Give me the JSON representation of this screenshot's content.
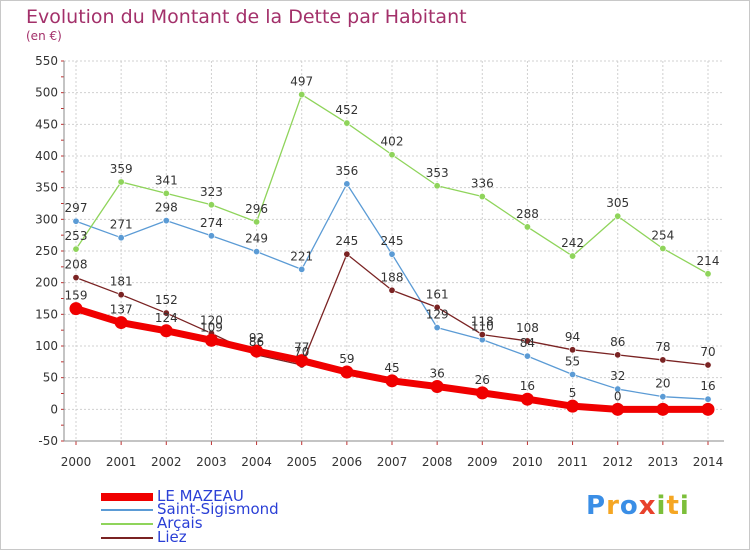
{
  "title": "Evolution du Montant de la Dette par Habitant",
  "subtitle": "(en €)",
  "logo": {
    "letters": [
      "P",
      "r",
      "o",
      "x",
      "i",
      "t",
      "i"
    ],
    "colors": [
      "#3a8ee6",
      "#f5a623",
      "#3a8ee6",
      "#e8412c",
      "#7cbf3a",
      "#f5a623",
      "#7cbf3a"
    ]
  },
  "chart_data": {
    "type": "line",
    "title": "Evolution du Montant de la Dette par Habitant",
    "ylabel": "(en €)",
    "xlabel": "",
    "x": [
      "2000",
      "2001",
      "2002",
      "2003",
      "2004",
      "2005",
      "2006",
      "2007",
      "2008",
      "2009",
      "2010",
      "2011",
      "2012",
      "2013",
      "2014"
    ],
    "ylim": [
      -50,
      550
    ],
    "yticks": [
      -50,
      0,
      50,
      100,
      150,
      200,
      250,
      300,
      350,
      400,
      450,
      500,
      550
    ],
    "grid": true,
    "legend_position": "bottom-left",
    "series": [
      {
        "name": "LE MAZEAU",
        "color": "#f00000",
        "bold": true,
        "values": [
          159,
          137,
          124,
          109,
          92,
          77,
          59,
          45,
          36,
          26,
          16,
          5,
          0,
          0,
          0
        ],
        "labels": [
          "159",
          "137",
          "124",
          "109",
          "92",
          "77",
          "59",
          "45",
          "36",
          "26",
          "16",
          "5",
          "0",
          "",
          ""
        ]
      },
      {
        "name": "Saint-Sigismond",
        "color": "#5b9bd5",
        "bold": false,
        "values": [
          297,
          271,
          298,
          274,
          249,
          221,
          356,
          245,
          129,
          110,
          84,
          55,
          32,
          20,
          16
        ],
        "labels": [
          "297",
          "271",
          "298",
          "274",
          "249",
          "221",
          "356",
          "245",
          "129",
          "110",
          "84",
          "55",
          "32",
          "20",
          "16"
        ]
      },
      {
        "name": "Arçais",
        "color": "#8fd45b",
        "bold": false,
        "values": [
          253,
          359,
          341,
          323,
          296,
          497,
          452,
          402,
          353,
          336,
          288,
          242,
          305,
          254,
          214
        ],
        "labels": [
          "253",
          "359",
          "341",
          "323",
          "296",
          "497",
          "452",
          "402",
          "353",
          "336",
          "288",
          "242",
          "305",
          "254",
          "214"
        ]
      },
      {
        "name": "Liez",
        "color": "#7a2323",
        "bold": false,
        "values": [
          208,
          181,
          152,
          120,
          86,
          70,
          245,
          188,
          161,
          118,
          108,
          94,
          86,
          78,
          70
        ],
        "labels": [
          "208",
          "181",
          "152",
          "120",
          "86",
          "70",
          "245",
          "188",
          "161",
          "118",
          "108",
          "94",
          "86",
          "78",
          "70"
        ]
      }
    ]
  }
}
